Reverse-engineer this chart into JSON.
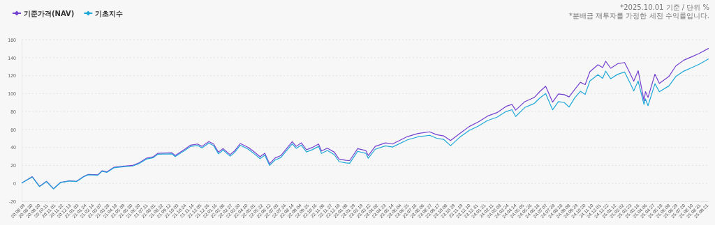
{
  "chart_data": {
    "type": "line",
    "x": [
      "2020-08-10",
      "2020-09-07",
      "2020-09-27",
      "2020-10-16",
      "2020-11-04",
      "2020-11-23",
      "2020-12-18",
      "2021-01-06",
      "2021-01-25",
      "2021-02-07",
      "2021-03-05",
      "2021-03-17",
      "2021-03-30",
      "2021-04-18",
      "2021-05-14",
      "2021-06-08",
      "2021-06-27",
      "2021-07-16",
      "2021-08-04",
      "2021-08-17",
      "2021-09-24",
      "2021-10-03",
      "2021-11-01",
      "2021-11-14",
      "2021-12-03",
      "2021-12-15",
      "2022-01-03",
      "2022-01-16",
      "2022-01-29",
      "2022-02-11",
      "2022-03-02",
      "2022-03-14",
      "2022-03-30",
      "2022-04-21",
      "2022-05-04",
      "2022-05-23",
      "2022-06-05",
      "2022-06-18",
      "2022-07-03",
      "2022-07-19",
      "2022-07-29",
      "2022-08-19",
      "2022-08-30",
      "2022-09-13",
      "2022-09-27",
      "2022-10-13",
      "2022-10-30",
      "2022-11-07",
      "2022-11-23",
      "2022-12-12",
      "2022-12-25",
      "2023-01-13",
      "2023-01-23",
      "2023-02-14",
      "2023-03-08",
      "2023-03-15",
      "2023-04-03",
      "2023-05-01",
      "2023-05-20",
      "2023-06-30",
      "2023-07-29",
      "2023-08-30",
      "2023-09-18",
      "2023-10-07",
      "2023-10-26",
      "2023-11-20",
      "2023-12-16",
      "2024-01-10",
      "2024-02-04",
      "2024-03-01",
      "2024-03-26",
      "2024-04-11",
      "2024-04-21",
      "2024-05-16",
      "2024-06-11",
      "2024-06-26",
      "2024-07-12",
      "2024-07-31",
      "2024-08-16",
      "2024-09-01",
      "2024-09-14",
      "2024-09-30",
      "2024-10-15",
      "2024-10-28",
      "2024-11-10",
      "2024-12-02",
      "2024-12-15",
      "2024-12-23",
      "2025-01-06",
      "2025-01-25",
      "2025-02-13",
      "2025-03-01",
      "2025-03-10",
      "2025-03-22",
      "2025-04-07",
      "2025-04-11",
      "2025-04-18",
      "2025-05-07",
      "2025-05-19",
      "2025-06-14",
      "2025-07-03",
      "2025-07-25",
      "2025-08-16",
      "2025-09-04",
      "2025-09-30"
    ],
    "series": [
      {
        "name": "기준가격(NAV)",
        "color": "#7440d0",
        "values": [
          0.5,
          7.5,
          -3.4,
          2.3,
          -6,
          1,
          2.9,
          2.3,
          7.5,
          10,
          9.6,
          14,
          12.7,
          17.9,
          19.2,
          20,
          23,
          28,
          29.6,
          33.5,
          34,
          31,
          38.7,
          42.6,
          43.8,
          41.2,
          46.5,
          43.8,
          34.8,
          38.7,
          32.1,
          36,
          44.4,
          40,
          36,
          29.6,
          33.5,
          21.8,
          28.2,
          31,
          36,
          46.5,
          41.2,
          45.1,
          37.4,
          40,
          43.8,
          36,
          39.2,
          34.8,
          27,
          25.7,
          25.4,
          38.7,
          36.6,
          31,
          41.2,
          45.1,
          43.8,
          52.1,
          55.5,
          57.4,
          54.2,
          52.9,
          47.7,
          55.5,
          63.3,
          68.5,
          74.9,
          78.8,
          85.8,
          87.9,
          81.5,
          91,
          95.7,
          102.2,
          108.2,
          90.5,
          99.6,
          98.8,
          96.3,
          104.8,
          112.6,
          110,
          124.3,
          132.1,
          129,
          136,
          128.2,
          133.3,
          134.6,
          121.6,
          113.8,
          125.5,
          92,
          102.2,
          95.7,
          121.6,
          111.3,
          119,
          130.7,
          137.2,
          141.1,
          144.5,
          150.2
        ]
      },
      {
        "name": "기초지수",
        "color": "#1ea8d8",
        "values": [
          0.5,
          7,
          -3.6,
          2,
          -6.2,
          0.8,
          2.6,
          2,
          7.2,
          9.6,
          9,
          13.5,
          12.2,
          17.3,
          18.5,
          19.2,
          22.2,
          27,
          28.6,
          32.5,
          32.8,
          29.8,
          37.4,
          41.2,
          42.2,
          39.6,
          44.8,
          42,
          33,
          37,
          30.3,
          34.2,
          42.5,
          38,
          34,
          27.5,
          31.4,
          20,
          26,
          28.8,
          33.8,
          44,
          39,
          42.6,
          35,
          37.5,
          41.2,
          33.4,
          36.6,
          32,
          24.2,
          22.8,
          22.4,
          35.7,
          33.5,
          28,
          38,
          41.8,
          40.4,
          48.5,
          51.8,
          53.5,
          50.2,
          49,
          42,
          51.3,
          59,
          63.8,
          70,
          73.7,
          80,
          82,
          74.5,
          84.5,
          89,
          95,
          100,
          82,
          91,
          90,
          85,
          95.5,
          102.5,
          99,
          114,
          121,
          117,
          125,
          116.5,
          121.5,
          124,
          111,
          103,
          114,
          88,
          94,
          86.5,
          111,
          102,
          108.5,
          119,
          125,
          129,
          132.5,
          138.5
        ]
      }
    ],
    "xlim": [
      "2020-08-09",
      "2025-10-01"
    ],
    "xticks": [
      {
        "value": "2020-08-09",
        "label": "20.08.09"
      },
      {
        "value": "2020-08-30",
        "label": "20.08.30"
      },
      {
        "value": "2020-09-20",
        "label": "20.09.20"
      },
      {
        "value": "2020-10-11",
        "label": "20.10.11"
      },
      {
        "value": "2020-11-01",
        "label": "20.11.01"
      },
      {
        "value": "2020-11-22",
        "label": "20.11.22"
      },
      {
        "value": "2020-12-13",
        "label": "20.12.13"
      },
      {
        "value": "2021-01-03",
        "label": "21.01.03"
      },
      {
        "value": "2021-01-24",
        "label": "21.01.24"
      },
      {
        "value": "2021-02-14",
        "label": "21.02.14"
      },
      {
        "value": "2021-03-07",
        "label": "21.03.07"
      },
      {
        "value": "2021-03-28",
        "label": "21.03.28"
      },
      {
        "value": "2021-04-18",
        "label": "21.04.18"
      },
      {
        "value": "2021-05-09",
        "label": "21.05.09"
      },
      {
        "value": "2021-05-30",
        "label": "21.05.30"
      },
      {
        "value": "2021-06-20",
        "label": "21.06.20"
      },
      {
        "value": "2021-07-11",
        "label": "21.07.11"
      },
      {
        "value": "2021-08-01",
        "label": "21.08.01"
      },
      {
        "value": "2021-08-22",
        "label": "21.08.22"
      },
      {
        "value": "2021-09-12",
        "label": "21.09.12"
      },
      {
        "value": "2021-10-03",
        "label": "21.10.03"
      },
      {
        "value": "2021-10-24",
        "label": "21.10.24"
      },
      {
        "value": "2021-11-14",
        "label": "21.11.14"
      },
      {
        "value": "2021-12-05",
        "label": "21.12.05"
      },
      {
        "value": "2021-12-26",
        "label": "21.12.26"
      },
      {
        "value": "2022-01-16",
        "label": "22.01.16"
      },
      {
        "value": "2022-02-06",
        "label": "22.02.06"
      },
      {
        "value": "2022-02-27",
        "label": "22.02.27"
      },
      {
        "value": "2022-03-20",
        "label": "22.03.20"
      },
      {
        "value": "2022-04-10",
        "label": "22.04.10"
      },
      {
        "value": "2022-05-01",
        "label": "22.05.01"
      },
      {
        "value": "2022-05-22",
        "label": "22.05.22"
      },
      {
        "value": "2022-06-12",
        "label": "22.06.12"
      },
      {
        "value": "2022-07-03",
        "label": "22.07.03"
      },
      {
        "value": "2022-07-24",
        "label": "22.07.24"
      },
      {
        "value": "2022-08-14",
        "label": "22.08.14"
      },
      {
        "value": "2022-09-04",
        "label": "22.09.04"
      },
      {
        "value": "2022-09-25",
        "label": "22.09.25"
      },
      {
        "value": "2022-10-16",
        "label": "22.10.16"
      },
      {
        "value": "2022-11-06",
        "label": "22.11.06"
      },
      {
        "value": "2022-11-27",
        "label": "22.11.27"
      },
      {
        "value": "2022-12-18",
        "label": "22.12.18"
      },
      {
        "value": "2023-01-08",
        "label": "23.01.08"
      },
      {
        "value": "2023-01-29",
        "label": "23.01.29"
      },
      {
        "value": "2023-02-19",
        "label": "23.02.19"
      },
      {
        "value": "2023-03-12",
        "label": "23.03.12"
      },
      {
        "value": "2023-04-02",
        "label": "23.04.02"
      },
      {
        "value": "2023-04-23",
        "label": "23.04.23"
      },
      {
        "value": "2023-05-14",
        "label": "23.05.14"
      },
      {
        "value": "2023-06-04",
        "label": "23.06.04"
      },
      {
        "value": "2023-06-25",
        "label": "23.06.25"
      },
      {
        "value": "2023-07-16",
        "label": "23.07.16"
      },
      {
        "value": "2023-08-06",
        "label": "23.08.06"
      },
      {
        "value": "2023-08-27",
        "label": "23.08.27"
      },
      {
        "value": "2023-09-17",
        "label": "23.09.17"
      },
      {
        "value": "2023-10-08",
        "label": "23.10.08"
      },
      {
        "value": "2023-10-29",
        "label": "23.10.29"
      },
      {
        "value": "2023-11-19",
        "label": "23.11.19"
      },
      {
        "value": "2023-12-10",
        "label": "23.12.10"
      },
      {
        "value": "2023-12-31",
        "label": "23.12.31"
      },
      {
        "value": "2024-01-21",
        "label": "24.01.21"
      },
      {
        "value": "2024-02-11",
        "label": "24.02.11"
      },
      {
        "value": "2024-03-03",
        "label": "24.03.03"
      },
      {
        "value": "2024-03-24",
        "label": "24.03.24"
      },
      {
        "value": "2024-04-14",
        "label": "24.04.14"
      },
      {
        "value": "2024-05-05",
        "label": "24.05.05"
      },
      {
        "value": "2024-05-26",
        "label": "24.05.26"
      },
      {
        "value": "2024-06-16",
        "label": "24.06.16"
      },
      {
        "value": "2024-07-07",
        "label": "24.07.07"
      },
      {
        "value": "2024-07-28",
        "label": "24.07.28"
      },
      {
        "value": "2024-08-18",
        "label": "24.08.18"
      },
      {
        "value": "2024-09-08",
        "label": "24.09.08"
      },
      {
        "value": "2024-09-29",
        "label": "24.09.29"
      },
      {
        "value": "2024-10-20",
        "label": "24.10.20"
      },
      {
        "value": "2024-11-10",
        "label": "24.11.10"
      },
      {
        "value": "2024-12-01",
        "label": "24.12.01"
      },
      {
        "value": "2024-12-22",
        "label": "24.12.22"
      },
      {
        "value": "2025-01-12",
        "label": "25.01.12"
      },
      {
        "value": "2025-02-02",
        "label": "25.02.02"
      },
      {
        "value": "2025-02-23",
        "label": "25.02.23"
      },
      {
        "value": "2025-03-16",
        "label": "25.03.16"
      },
      {
        "value": "2025-04-06",
        "label": "25.04.06"
      },
      {
        "value": "2025-04-27",
        "label": "25.04.27"
      },
      {
        "value": "2025-05-18",
        "label": "25.05.18"
      },
      {
        "value": "2025-06-08",
        "label": "25.06.08"
      },
      {
        "value": "2025-06-29",
        "label": "25.06.29"
      },
      {
        "value": "2025-07-20",
        "label": "25.07.20"
      },
      {
        "value": "2025-08-10",
        "label": "25.08.10"
      },
      {
        "value": "2025-08-31",
        "label": "25.08.31"
      },
      {
        "value": "2025-09-21",
        "label": "25.09.21"
      }
    ],
    "ylim": [
      -20,
      160
    ],
    "yticks": [
      -20,
      0,
      20,
      40,
      60,
      80,
      100,
      120,
      140,
      160
    ],
    "grid": "y",
    "legend": "top left",
    "line_style": "solid",
    "annotations": [
      "*2025.10.01 기준 / 단위 %",
      "*분배금 재투자를 가정한 세전 수익률입니다."
    ]
  }
}
